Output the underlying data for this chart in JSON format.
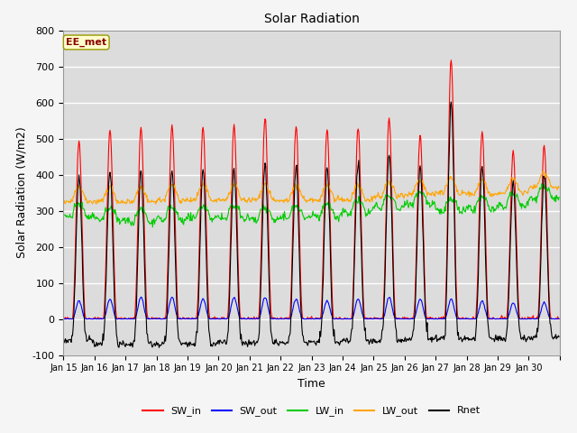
{
  "title": "Solar Radiation",
  "xlabel": "Time",
  "ylabel": "Solar Radiation (W/m2)",
  "ylim": [
    -100,
    800
  ],
  "yticks": [
    -100,
    0,
    100,
    200,
    300,
    400,
    500,
    600,
    700,
    800
  ],
  "date_labels": [
    "Jan 15",
    "Jan 16",
    "Jan 17",
    "Jan 18",
    "Jan 19",
    "Jan 20",
    "Jan 21",
    "Jan 22",
    "Jan 23",
    "Jan 24",
    "Jan 25",
    "Jan 26",
    "Jan 27",
    "Jan 28",
    "Jan 29",
    "Jan 30"
  ],
  "colors": {
    "SW_in": "#ff0000",
    "SW_out": "#0000ff",
    "LW_in": "#00cc00",
    "LW_out": "#ffa500",
    "Rnet": "#000000"
  },
  "annotation_text": "EE_met",
  "annotation_color": "#8b0000",
  "annotation_bg": "#ffffcc",
  "plot_bg": "#dcdcdc",
  "fig_bg": "#f5f5f5",
  "linewidth": 0.8,
  "n_days": 16,
  "dt_hours": 0.5,
  "SW_in_peaks": [
    495,
    525,
    530,
    535,
    530,
    540,
    555,
    535,
    525,
    530,
    560,
    510,
    720,
    520,
    465,
    480
  ],
  "SW_out_peaks": [
    50,
    55,
    60,
    60,
    55,
    60,
    60,
    55,
    50,
    55,
    60,
    55,
    55,
    50,
    45,
    45
  ],
  "LW_in_base": [
    285,
    275,
    270,
    275,
    280,
    280,
    275,
    280,
    285,
    295,
    310,
    320,
    300,
    305,
    315,
    335
  ],
  "LW_out_base": [
    325,
    325,
    325,
    330,
    330,
    330,
    330,
    330,
    330,
    330,
    340,
    345,
    350,
    345,
    350,
    365
  ],
  "Rnet_night": [
    -60,
    -70,
    -70,
    -70,
    -70,
    -65,
    -65,
    -65,
    -65,
    -60,
    -60,
    -55,
    -55,
    -55,
    -55,
    -50
  ]
}
